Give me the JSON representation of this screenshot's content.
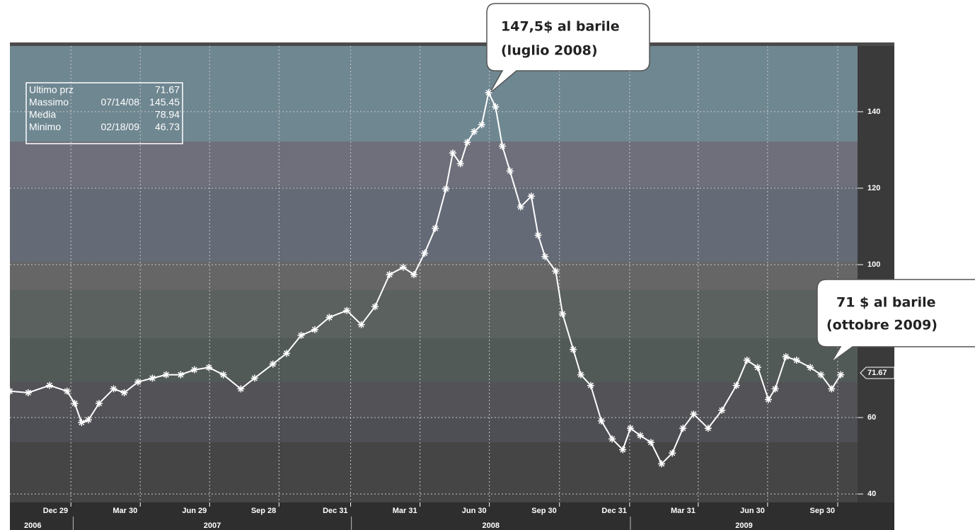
{
  "chart_data": {
    "type": "line",
    "x": [
      "2006-10-10",
      "2006-11-03",
      "2006-12-01",
      "2006-12-24",
      "2007-01-03",
      "2007-01-12",
      "2007-01-21",
      "2007-02-04",
      "2007-02-23",
      "2007-03-09",
      "2007-03-27",
      "2007-04-15",
      "2007-05-03",
      "2007-05-22",
      "2007-06-09",
      "2007-06-28",
      "2007-07-17",
      "2007-08-09",
      "2007-08-27",
      "2007-09-20",
      "2007-10-08",
      "2007-10-27",
      "2007-11-14",
      "2007-12-03",
      "2007-12-26",
      "2008-01-14",
      "2008-02-01",
      "2008-02-20",
      "2008-03-09",
      "2008-03-23",
      "2008-04-06",
      "2008-04-20",
      "2008-05-04",
      "2008-05-13",
      "2008-05-23",
      "2008-06-01",
      "2008-06-10",
      "2008-06-20",
      "2008-06-29",
      "2008-07-08",
      "2008-07-17",
      "2008-07-27",
      "2008-08-10",
      "2008-08-24",
      "2008-09-02",
      "2008-09-11",
      "2008-09-25",
      "2008-10-04",
      "2008-10-18",
      "2008-10-28",
      "2008-11-10",
      "2008-11-24",
      "2008-12-08",
      "2008-12-22",
      "2009-01-01",
      "2009-01-14",
      "2009-01-28",
      "2009-02-11",
      "2009-02-25",
      "2009-03-11",
      "2009-03-25",
      "2009-04-13",
      "2009-05-01",
      "2009-05-20",
      "2009-06-03",
      "2009-06-17",
      "2009-07-01",
      "2009-07-10",
      "2009-07-24",
      "2009-08-07",
      "2009-08-25",
      "2009-09-08",
      "2009-09-22",
      "2009-10-04"
    ],
    "series": [
      {
        "color": "#ffffff",
        "values": [
          66.9,
          66.5,
          68.4,
          66.9,
          63.7,
          58.7,
          59.4,
          63.7,
          67.5,
          66.5,
          69.3,
          70.3,
          71.2,
          71.2,
          72.5,
          73.1,
          71.2,
          67.5,
          70.3,
          74.0,
          76.8,
          81.5,
          83.0,
          86.2,
          88.0,
          84.3,
          89.0,
          97.4,
          99.3,
          97.4,
          103.0,
          109.5,
          119.8,
          129.2,
          126.4,
          132.0,
          134.8,
          136.6,
          145.0,
          141.3,
          131.0,
          124.5,
          115.1,
          117.9,
          107.7,
          102.1,
          98.3,
          87.1,
          77.8,
          71.2,
          68.4,
          59.1,
          54.4,
          51.6,
          57.2,
          55.3,
          53.5,
          47.9,
          50.7,
          57.2,
          60.9,
          57.2,
          61.9,
          68.4,
          75.0,
          73.1,
          64.7,
          67.5,
          75.9,
          75.0,
          73.1,
          71.2,
          67.5,
          71.2
        ]
      }
    ],
    "xlim": [
      "2006-10-10",
      "2009-10-26"
    ],
    "xticks": [
      {
        "value": "2006-12-29",
        "label": "Dec 29"
      },
      {
        "value": "2007-03-30",
        "label": "Mar 30"
      },
      {
        "value": "2007-06-29",
        "label": "Jun 29"
      },
      {
        "value": "2007-09-28",
        "label": "Sep 28"
      },
      {
        "value": "2007-12-31",
        "label": "Dec 31"
      },
      {
        "value": "2008-03-31",
        "label": "Mar 31"
      },
      {
        "value": "2008-06-30",
        "label": "Jun 30"
      },
      {
        "value": "2008-09-30",
        "label": "Sep 30"
      },
      {
        "value": "2008-12-31",
        "label": "Dec 31"
      },
      {
        "value": "2009-03-31",
        "label": "Mar 31"
      },
      {
        "value": "2009-06-30",
        "label": "Jun 30"
      },
      {
        "value": "2009-09-30",
        "label": "Sep 30"
      }
    ],
    "years": [
      2006,
      2007,
      2008,
      2009
    ],
    "ylim": [
      37.8,
      157.2
    ],
    "yticks": [
      40,
      60,
      100,
      120,
      140
    ],
    "grid": true,
    "stats": [
      {
        "label": "Ultimo prz",
        "value": 71.67
      },
      {
        "label": "Massimo",
        "date": "07/14/08",
        "value": 145.45
      },
      {
        "label": "Media",
        "value": 78.94
      },
      {
        "label": "Minimo",
        "date": "02/18/09",
        "value": 46.73
      }
    ],
    "annotations": [
      {
        "lines": [
          "147,5$ al barile",
          "(luglio 2008)"
        ]
      },
      {
        "lines": [
          "71 $ al barile",
          "(ottobre 2009)"
        ]
      }
    ]
  }
}
